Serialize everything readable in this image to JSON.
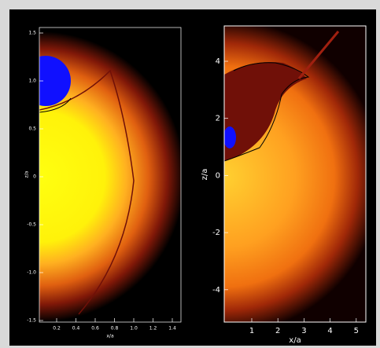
{
  "left_panel": {
    "y_label": "z/a",
    "x_label": "x/a",
    "y_ticks": [
      "1.5",
      "1.0",
      "0.5",
      "0",
      "-0.5",
      "-1.0",
      "-1.5"
    ],
    "x_ticks": [
      "0.2",
      "0.4",
      "0.6",
      "0.8",
      "1.0",
      "1.2",
      "1.4"
    ]
  },
  "right_panel": {
    "y_label": "z/a",
    "x_label": "x/a",
    "y_ticks": [
      "4",
      "2",
      "0",
      "-2",
      "-4"
    ],
    "x_ticks": [
      "1",
      "2",
      "3",
      "4",
      "5"
    ]
  }
}
